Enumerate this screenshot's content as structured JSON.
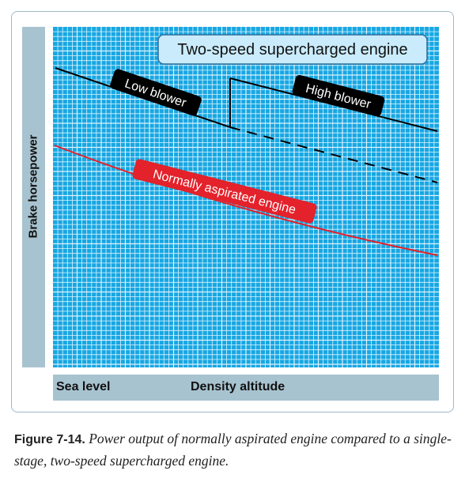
{
  "diagram": {
    "y_axis_label": "Brake horsepower",
    "x_axis_left_label": "Sea level",
    "x_axis_label": "Density altitude",
    "title_box": "Two-speed supercharged engine",
    "curve_labels": {
      "low_blower": "Low blower",
      "high_blower": "High blower",
      "normally_aspirated": "Normally aspirated engine"
    },
    "colors": {
      "grid_background": "#17a7e3",
      "grid_line": "#dff3fb",
      "axis_bar": "#a8c3d0",
      "title_box_fill": "#c9ebfb",
      "title_box_border": "#2f6f9a",
      "supercharged_curve": "#000000",
      "normally_aspirated_curve": "#e3222b"
    }
  },
  "caption": {
    "figure_number": "Figure 7-14.",
    "text": "Power output of normally aspirated engine compared to a single-stage, two-speed supercharged engine."
  }
}
